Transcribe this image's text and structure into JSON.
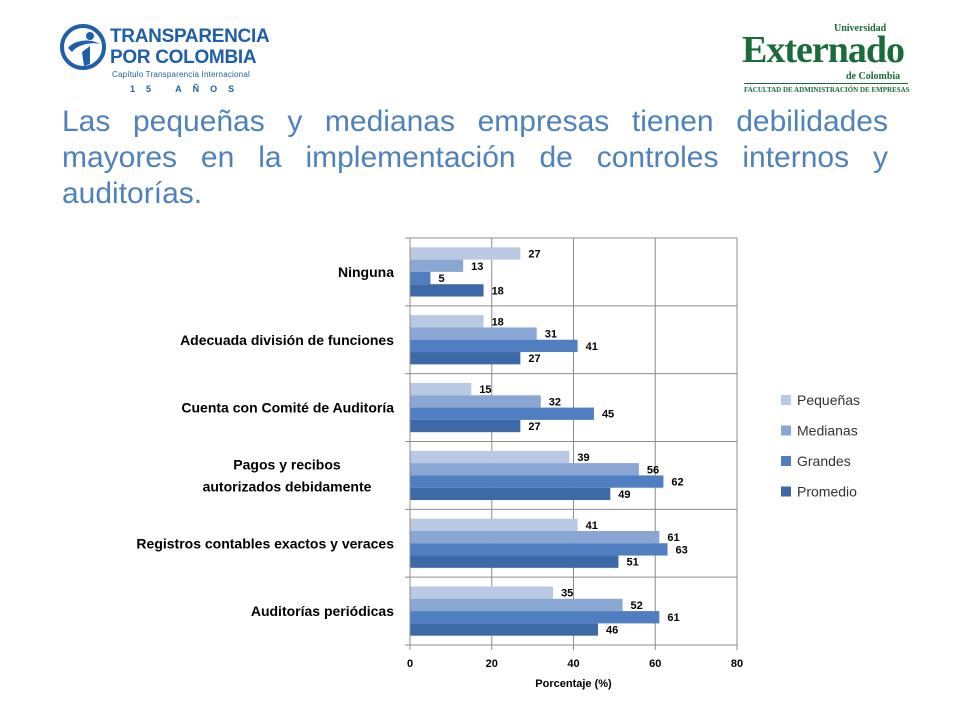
{
  "logos": {
    "left": {
      "line1": "TRANSPARENCIA",
      "line2": "POR COLOMBIA",
      "line3": "Capítulo Transparencia Internacional",
      "line4": "15 AÑOS"
    },
    "right": {
      "top": "Universidad",
      "main": "Externado",
      "sub": "de Colombia",
      "bottom": "FACULTAD DE ADMINISTRACIÓN DE EMPRESAS"
    }
  },
  "title": "Las pequeñas y medianas empresas tienen debilidades mayores en la implementación de controles internos y auditorías.",
  "chart_data": {
    "type": "bar",
    "orientation": "horizontal",
    "categories": [
      "Ninguna",
      "Adecuada división de funciones",
      "Cuenta con Comité de Auditoría",
      "Pagos y recibos autorizados debidamente",
      "Registros contables exactos y veraces",
      "Auditorías periódicas"
    ],
    "series": [
      {
        "name": "Pequeñas",
        "color": "#b9c8e3",
        "values": [
          27,
          18,
          15,
          39,
          41,
          35
        ]
      },
      {
        "name": "Medianas",
        "color": "#8aa7d4",
        "values": [
          13,
          31,
          32,
          56,
          61,
          52
        ]
      },
      {
        "name": "Grandes",
        "color": "#4f7fc1",
        "values": [
          5,
          41,
          45,
          62,
          63,
          61
        ]
      },
      {
        "name": "Promedio",
        "color": "#3d6aa7",
        "values": [
          18,
          27,
          27,
          49,
          51,
          46
        ]
      }
    ],
    "xlabel": "Porcentaje (%)",
    "ylabel": "",
    "xlim": [
      0,
      80
    ],
    "xticks": [
      0,
      20,
      40,
      60,
      80
    ],
    "grid": true,
    "legend_position": "right",
    "data_labels": true
  }
}
